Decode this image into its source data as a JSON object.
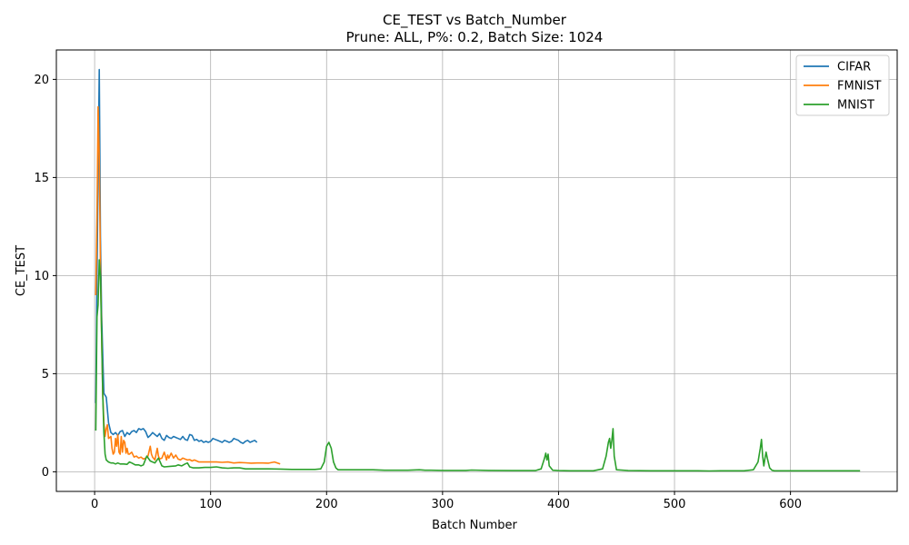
{
  "chart_data": {
    "type": "line",
    "title": "CE_TEST vs Batch_Number",
    "subtitle": "Prune: ALL, P%: 0.2, Batch Size: 1024",
    "xlabel": "Batch Number",
    "ylabel": "CE_TEST",
    "xlim": [
      -33,
      692
    ],
    "ylim": [
      -1.0,
      21.5
    ],
    "xticks": [
      0,
      100,
      200,
      300,
      400,
      500,
      600
    ],
    "yticks": [
      0,
      5,
      10,
      15,
      20
    ],
    "grid": true,
    "legend_position": "top-right",
    "series": [
      {
        "name": "CIFAR",
        "color": "#1f77b4",
        "x": [
          1,
          2,
          3,
          4,
          5,
          6,
          7,
          8,
          10,
          12,
          14,
          16,
          18,
          20,
          22,
          24,
          26,
          28,
          30,
          32,
          34,
          36,
          38,
          40,
          42,
          44,
          46,
          48,
          50,
          52,
          54,
          56,
          58,
          60,
          62,
          64,
          66,
          68,
          70,
          72,
          74,
          76,
          78,
          80,
          82,
          84,
          86,
          88,
          90,
          92,
          94,
          96,
          98,
          100,
          102,
          104,
          106,
          108,
          110,
          112,
          114,
          116,
          118,
          120,
          122,
          124,
          126,
          128,
          130,
          132,
          134,
          136,
          138,
          140
        ],
        "y": [
          3.5,
          10.0,
          15.0,
          20.5,
          12.0,
          8.0,
          6.0,
          4.0,
          3.8,
          2.5,
          2.0,
          1.9,
          2.0,
          1.85,
          2.05,
          2.1,
          1.8,
          2.0,
          1.9,
          2.05,
          2.1,
          2.0,
          2.2,
          2.15,
          2.2,
          2.05,
          1.75,
          1.85,
          2.0,
          1.9,
          1.8,
          1.95,
          1.7,
          1.6,
          1.85,
          1.75,
          1.7,
          1.8,
          1.75,
          1.7,
          1.65,
          1.8,
          1.65,
          1.6,
          1.9,
          1.85,
          1.6,
          1.65,
          1.55,
          1.6,
          1.5,
          1.55,
          1.5,
          1.55,
          1.7,
          1.65,
          1.6,
          1.55,
          1.5,
          1.6,
          1.55,
          1.5,
          1.55,
          1.7,
          1.65,
          1.6,
          1.5,
          1.45,
          1.55,
          1.6,
          1.5,
          1.55,
          1.6,
          1.5
        ]
      },
      {
        "name": "FMNIST",
        "color": "#ff7f0e",
        "x": [
          1,
          2,
          3,
          4,
          5,
          6,
          7,
          8,
          9,
          10,
          11,
          12,
          13,
          14,
          15,
          16,
          17,
          18,
          19,
          20,
          21,
          22,
          23,
          24,
          25,
          26,
          27,
          28,
          29,
          30,
          32,
          34,
          36,
          38,
          40,
          42,
          44,
          46,
          48,
          49,
          50,
          52,
          54,
          55,
          56,
          58,
          60,
          62,
          63,
          64,
          66,
          68,
          70,
          72,
          74,
          76,
          78,
          80,
          82,
          84,
          86,
          88,
          90,
          95,
          100,
          105,
          110,
          115,
          120,
          125,
          130,
          135,
          140,
          145,
          150,
          155,
          160
        ],
        "y": [
          9.0,
          13.0,
          18.6,
          16.0,
          10.5,
          7.0,
          4.0,
          2.5,
          1.8,
          2.2,
          2.4,
          1.7,
          1.75,
          1.8,
          1.2,
          0.9,
          1.0,
          1.7,
          1.3,
          1.9,
          1.0,
          0.9,
          1.8,
          1.0,
          1.6,
          1.5,
          0.95,
          1.2,
          0.9,
          0.9,
          1.0,
          0.75,
          0.8,
          0.7,
          0.75,
          0.65,
          0.7,
          0.8,
          1.3,
          0.9,
          0.75,
          0.6,
          1.2,
          0.8,
          0.65,
          0.7,
          1.0,
          0.6,
          0.85,
          0.7,
          0.95,
          0.7,
          0.85,
          0.65,
          0.6,
          0.7,
          0.65,
          0.6,
          0.62,
          0.55,
          0.6,
          0.55,
          0.5,
          0.5,
          0.5,
          0.5,
          0.48,
          0.5,
          0.45,
          0.47,
          0.46,
          0.44,
          0.45,
          0.45,
          0.44,
          0.5,
          0.4
        ]
      },
      {
        "name": "MNIST",
        "color": "#2ca02c",
        "x": [
          1,
          2,
          3,
          4,
          5,
          6,
          7,
          8,
          9,
          10,
          12,
          14,
          16,
          18,
          20,
          22,
          25,
          28,
          30,
          32,
          35,
          38,
          40,
          42,
          45,
          48,
          50,
          52,
          55,
          58,
          60,
          65,
          70,
          72,
          75,
          78,
          80,
          82,
          85,
          90,
          95,
          100,
          105,
          110,
          115,
          120,
          125,
          130,
          140,
          150,
          160,
          170,
          180,
          190,
          195,
          198,
          200,
          202,
          204,
          206,
          208,
          210,
          215,
          220,
          230,
          240,
          250,
          260,
          270,
          280,
          285,
          290,
          300,
          320,
          325,
          340,
          360,
          380,
          385,
          388,
          389,
          390,
          391,
          392,
          395,
          400,
          410,
          420,
          430,
          438,
          441,
          443,
          444,
          445,
          446,
          447,
          448,
          450,
          460,
          480,
          500,
          520,
          530,
          540,
          560,
          568,
          572,
          574,
          575,
          576,
          577,
          578,
          579,
          580,
          582,
          584,
          586,
          590,
          600,
          620,
          640,
          660
        ],
        "y": [
          2.1,
          7.9,
          8.5,
          10.8,
          10.0,
          7.0,
          4.0,
          2.0,
          0.9,
          0.6,
          0.5,
          0.45,
          0.45,
          0.4,
          0.45,
          0.4,
          0.4,
          0.38,
          0.5,
          0.45,
          0.35,
          0.35,
          0.3,
          0.35,
          0.8,
          0.55,
          0.5,
          0.45,
          0.7,
          0.3,
          0.25,
          0.28,
          0.3,
          0.35,
          0.3,
          0.4,
          0.45,
          0.25,
          0.2,
          0.2,
          0.22,
          0.22,
          0.25,
          0.2,
          0.18,
          0.2,
          0.2,
          0.15,
          0.15,
          0.15,
          0.14,
          0.12,
          0.12,
          0.12,
          0.15,
          0.5,
          1.3,
          1.5,
          1.2,
          0.5,
          0.2,
          0.1,
          0.1,
          0.1,
          0.1,
          0.1,
          0.08,
          0.08,
          0.08,
          0.1,
          0.08,
          0.08,
          0.07,
          0.07,
          0.09,
          0.07,
          0.06,
          0.06,
          0.15,
          0.7,
          0.95,
          0.6,
          0.9,
          0.3,
          0.08,
          0.06,
          0.05,
          0.05,
          0.05,
          0.15,
          0.8,
          1.5,
          1.7,
          1.2,
          1.6,
          2.2,
          0.8,
          0.1,
          0.06,
          0.05,
          0.05,
          0.05,
          0.04,
          0.05,
          0.05,
          0.1,
          0.5,
          1.2,
          1.65,
          0.8,
          0.3,
          0.7,
          1.0,
          0.7,
          0.2,
          0.08,
          0.05,
          0.05,
          0.05,
          0.05,
          0.05,
          0.05
        ]
      }
    ]
  }
}
